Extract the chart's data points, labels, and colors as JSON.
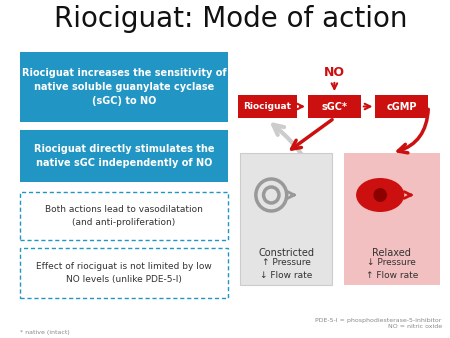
{
  "title": "Riociguat: Mode of action",
  "title_fontsize": 20,
  "background_color": "#ffffff",
  "blue_box1_text": "Riociguat increases the sensitivity of\nnative soluble guanylate cyclase\n(sGC) to NO",
  "blue_box2_text": "Riociguat directly stimulates the\nnative sGC independently of NO",
  "dashed_box1_text": "Both actions lead to vasodilatation\n(and anti-proliferation)",
  "dashed_box2_text": "Effect of riociguat is not limited by low\nNO levels (unlike PDE-5-I)",
  "blue_color": "#2196c4",
  "red_color": "#cc1010",
  "red_box_color": "#cc1010",
  "no_label": "NO",
  "box_riociguat": "Riociguat",
  "box_sgc": "sGC*",
  "box_cgmp": "cGMP",
  "constricted_label": "Constricted",
  "relaxed_label": "Relaxed",
  "footnote_left": "* native (intact)",
  "footnote_right": "PDE-5-I = phosphodiesterase-5-inhibitor\nNO = nitric oxide",
  "relaxed_bg": "#f2c0c0",
  "constricted_bg": "#e4e4e4",
  "constricted_border": "#cccccc",
  "gray_arrow": "#cccccc"
}
